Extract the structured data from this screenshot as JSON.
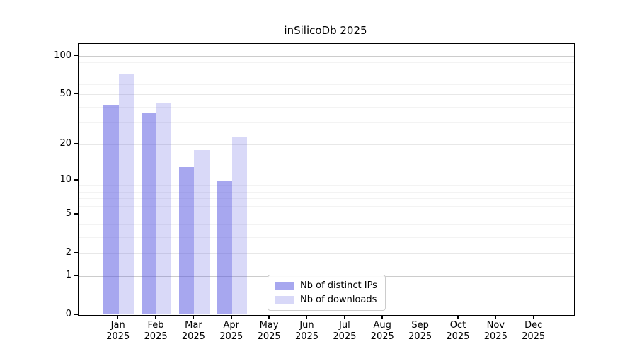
{
  "title": "inSilicoDb 2025",
  "chart_data": {
    "type": "bar",
    "title": "inSilicoDb 2025",
    "categories": [
      "Jan",
      "Feb",
      "Mar",
      "Apr",
      "May",
      "Jun",
      "Jul",
      "Aug",
      "Sep",
      "Oct",
      "Nov",
      "Dec"
    ],
    "year": "2025",
    "series": [
      {
        "name": "Nb of distinct IPs",
        "color": "rgba(80,80,224,0.5)",
        "hex_on_white": "#a7a7ef",
        "values": [
          41,
          36,
          13,
          10,
          0,
          0,
          0,
          0,
          0,
          0,
          0,
          0
        ]
      },
      {
        "name": "Nb of downloads",
        "color": "rgba(80,80,224,0.22)",
        "hex_on_white": "#d8d8f8",
        "values": [
          73,
          43,
          18,
          23,
          0,
          0,
          0,
          0,
          0,
          0,
          0,
          0
        ]
      }
    ],
    "y_axis": {
      "scale": "log10(value+1)",
      "max": 100,
      "tick_labels": [
        "0",
        "1",
        "2",
        "5",
        "10",
        "20",
        "50",
        "100"
      ],
      "ticks": [
        0,
        1,
        2,
        5,
        10,
        20,
        50,
        100
      ],
      "decade_gridlines": [
        1,
        10,
        100
      ],
      "mid_gridlines": [
        2,
        5,
        20,
        50
      ],
      "minor_gridlines": [
        3,
        4,
        6,
        7,
        8,
        9,
        30,
        40,
        60,
        70,
        80,
        90
      ]
    },
    "xlabel": "",
    "ylabel": "",
    "grid": true,
    "legend_position": "lower center",
    "legend_entries": [
      "Nb of distinct IPs",
      "Nb of downloads"
    ]
  },
  "colors": {
    "background": "#ffffff",
    "spine": "#000000",
    "grid_minor": "#f3f3f3",
    "grid_mid": "#e8e8e8",
    "grid_decade": "#cccccc",
    "legend_border": "#cccccc"
  }
}
